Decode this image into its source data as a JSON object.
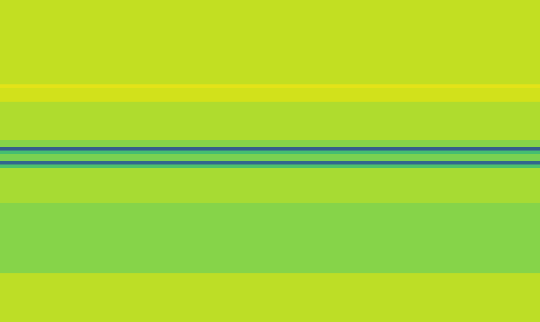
{
  "chart_data": {
    "type": "heatmap",
    "color": "viridis",
    "tick_labels": false,
    "clim": [
      0,
      1
    ],
    "cells": [
      [
        0.91
      ],
      [
        0.91
      ],
      [
        0.91
      ],
      [
        0.91
      ],
      [
        0.91
      ],
      [
        0.91
      ],
      [
        0.91
      ],
      [
        0.91
      ],
      [
        0.91
      ],
      [
        0.91
      ],
      [
        0.91
      ],
      [
        0.91
      ],
      [
        0.91
      ],
      [
        0.91
      ],
      [
        0.91
      ],
      [
        0.91
      ],
      [
        0.91
      ],
      [
        0.91
      ],
      [
        0.91
      ],
      [
        0.91
      ],
      [
        0.91
      ],
      [
        0.91
      ],
      [
        0.91
      ],
      [
        0.91
      ],
      [
        0.96
      ],
      [
        0.93
      ],
      [
        0.93
      ],
      [
        0.93
      ],
      [
        0.93
      ],
      [
        0.88
      ],
      [
        0.88
      ],
      [
        0.88
      ],
      [
        0.88
      ],
      [
        0.88
      ],
      [
        0.88
      ],
      [
        0.88
      ],
      [
        0.88
      ],
      [
        0.88
      ],
      [
        0.88
      ],
      [
        0.88
      ],
      [
        0.82
      ],
      [
        0.82
      ],
      [
        0.3
      ],
      [
        0.7
      ],
      [
        0.8
      ],
      [
        0.8
      ],
      [
        0.33
      ],
      [
        0.72
      ],
      [
        0.87
      ],
      [
        0.87
      ],
      [
        0.87
      ],
      [
        0.87
      ],
      [
        0.87
      ],
      [
        0.87
      ],
      [
        0.87
      ],
      [
        0.87
      ],
      [
        0.87
      ],
      [
        0.87
      ],
      [
        0.82
      ],
      [
        0.82
      ],
      [
        0.82
      ],
      [
        0.82
      ],
      [
        0.82
      ],
      [
        0.82
      ],
      [
        0.82
      ],
      [
        0.82
      ],
      [
        0.82
      ],
      [
        0.82
      ],
      [
        0.82
      ],
      [
        0.82
      ],
      [
        0.82
      ],
      [
        0.82
      ],
      [
        0.82
      ],
      [
        0.82
      ],
      [
        0.82
      ],
      [
        0.82
      ],
      [
        0.82
      ],
      [
        0.82
      ],
      [
        0.9
      ],
      [
        0.9
      ],
      [
        0.9
      ],
      [
        0.9
      ],
      [
        0.9
      ],
      [
        0.9
      ],
      [
        0.9
      ],
      [
        0.9
      ],
      [
        0.9
      ],
      [
        0.9
      ],
      [
        0.9
      ],
      [
        0.9
      ],
      [
        0.9
      ],
      [
        0.9
      ]
    ]
  }
}
